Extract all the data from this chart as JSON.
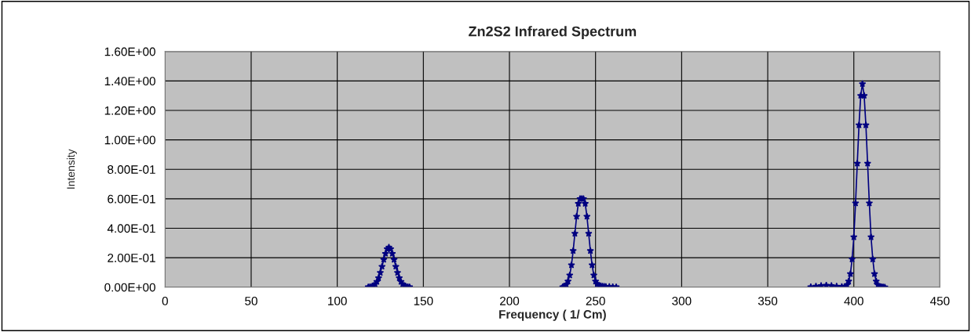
{
  "chart_data": {
    "type": "line",
    "title": "Zn2S2 Infrared Spectrum",
    "xlabel": "Frequency ( 1/ Cm)",
    "ylabel": "Intensity",
    "series": [
      {
        "color": "#000080",
        "x": [
          118,
          119,
          120,
          121,
          122,
          123,
          124,
          125,
          126,
          127,
          128,
          129,
          130,
          131,
          132,
          133,
          134,
          135,
          136,
          137,
          138,
          139,
          140,
          141,
          142,
          143,
          231,
          232,
          233,
          234,
          235,
          236,
          237,
          238,
          239,
          240,
          241,
          242,
          243,
          244,
          245,
          246,
          247,
          248,
          249,
          250,
          251,
          252,
          253,
          254,
          255,
          256,
          258,
          260,
          262,
          263,
          375,
          378,
          381,
          384,
          387,
          390,
          393,
          395,
          396,
          397,
          398,
          399,
          400,
          401,
          402,
          403,
          404,
          405,
          406,
          407,
          408,
          409,
          410,
          411,
          412,
          413,
          414,
          415,
          416,
          417,
          418
        ],
        "values": [
          0.001,
          0.002,
          0.004,
          0.01,
          0.02,
          0.037,
          0.062,
          0.098,
          0.14,
          0.187,
          0.228,
          0.259,
          0.27,
          0.259,
          0.228,
          0.187,
          0.14,
          0.098,
          0.062,
          0.037,
          0.02,
          0.01,
          0.004,
          0.002,
          0.001,
          null,
          0.002,
          0.007,
          0.017,
          0.04,
          0.081,
          0.15,
          0.247,
          0.364,
          0.48,
          0.567,
          0.6,
          0.6,
          0.6,
          0.567,
          0.48,
          0.364,
          0.247,
          0.15,
          0.081,
          0.04,
          0.02,
          0.012,
          0.008,
          0.006,
          0.005,
          0.004,
          0.003,
          0.002,
          0.001,
          null,
          0.002,
          0.006,
          0.01,
          0.012,
          0.01,
          0.006,
          0.004,
          0.005,
          0.015,
          0.04,
          0.09,
          0.19,
          0.34,
          0.57,
          0.84,
          1.1,
          1.3,
          1.38,
          1.3,
          1.1,
          0.84,
          0.57,
          0.34,
          0.19,
          0.09,
          0.04,
          0.015,
          0.005,
          0.002,
          0.001,
          0.0
        ]
      }
    ],
    "xlim": [
      0,
      450
    ],
    "xticks": [
      0,
      50,
      100,
      150,
      200,
      250,
      300,
      350,
      400,
      450
    ],
    "ylim": [
      0,
      1.6
    ],
    "yticks": [
      {
        "value": 0,
        "label": "0.00E+00"
      },
      {
        "value": 0.2,
        "label": "2.00E-01"
      },
      {
        "value": 0.4,
        "label": "4.00E-01"
      },
      {
        "value": 0.6,
        "label": "6.00E-01"
      },
      {
        "value": 0.8,
        "label": "8.00E-01"
      },
      {
        "value": 1.0,
        "label": "1.00E+00"
      },
      {
        "value": 1.2,
        "label": "1.20E+00"
      },
      {
        "value": 1.4,
        "label": "1.40E+00"
      },
      {
        "value": 1.6,
        "label": "1.60E+00"
      }
    ],
    "grid": true,
    "marker": "star",
    "line_style": "solid"
  }
}
